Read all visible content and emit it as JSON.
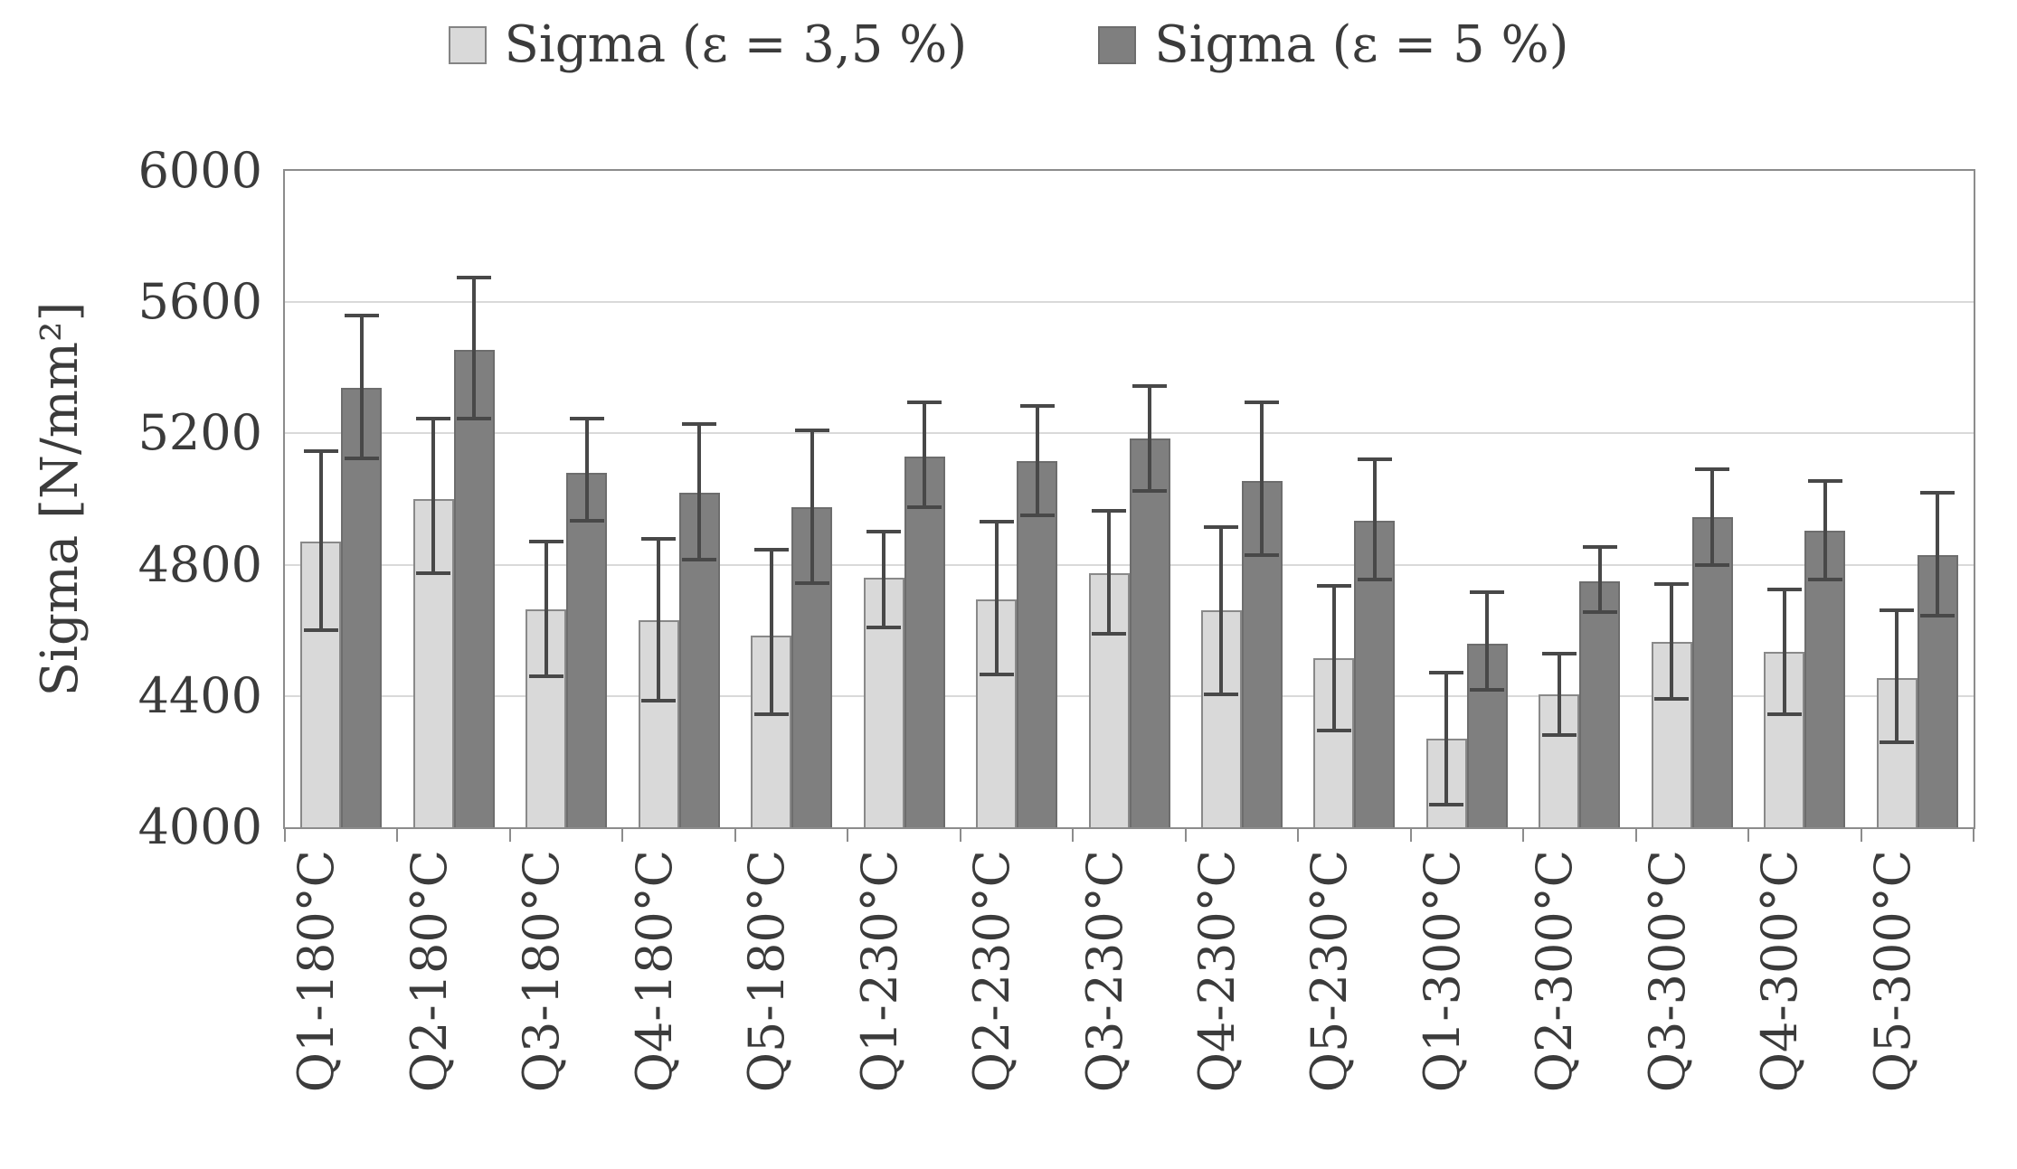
{
  "chart_data": {
    "type": "bar",
    "title": "",
    "ylabel": "Sigma [N/mm²]",
    "xlabel": "",
    "ylim": [
      4000,
      6000
    ],
    "yticks": [
      4000,
      4400,
      4800,
      5200,
      5600,
      6000
    ],
    "grid": true,
    "legend_position": "top",
    "categories": [
      "Q1-180°C",
      "Q2-180°C",
      "Q3-180°C",
      "Q4-180°C",
      "Q5-180°C",
      "Q1-230°C",
      "Q2-230°C",
      "Q3-230°C",
      "Q4-230°C",
      "Q5-230°C",
      "Q1-300°C",
      "Q2-300°C",
      "Q3-300°C",
      "Q4-300°C",
      "Q5-300°C"
    ],
    "series": [
      {
        "name": "Sigma (ε = 3,5 %)",
        "color": "#d9d9d9",
        "border_color": "#898989",
        "values": [
          4870,
          5000,
          4665,
          4630,
          4585,
          4760,
          4695,
          4775,
          4660,
          4515,
          4270,
          4405,
          4565,
          4535,
          4455
        ],
        "err_low": [
          4600,
          4775,
          4460,
          4385,
          4345,
          4610,
          4465,
          4590,
          4405,
          4295,
          4070,
          4280,
          4390,
          4345,
          4260
        ],
        "err_high": [
          5145,
          5245,
          4870,
          4880,
          4845,
          4900,
          4930,
          4965,
          4915,
          4735,
          4470,
          4530,
          4740,
          4725,
          4660
        ]
      },
      {
        "name": "Sigma (ε = 5 %)",
        "color": "#7f7f7f",
        "border_color": "#6d6d6d",
        "values": [
          5340,
          5455,
          5080,
          5020,
          4975,
          5130,
          5115,
          5185,
          5055,
          4935,
          4560,
          4750,
          4945,
          4905,
          4830
        ],
        "err_low": [
          5125,
          5245,
          4935,
          4815,
          4745,
          4975,
          4950,
          5025,
          4830,
          4755,
          4420,
          4655,
          4800,
          4755,
          4645
        ],
        "err_high": [
          5560,
          5675,
          5245,
          5230,
          5210,
          5295,
          5285,
          5345,
          5295,
          5120,
          4715,
          4855,
          5090,
          5055,
          5020
        ]
      }
    ],
    "colors": {
      "gridline": "#d9d9d9",
      "axis_border": "#8c8c8c",
      "error_bar": "#484848",
      "text": "#3b3b3b",
      "background": "#ffffff"
    }
  }
}
